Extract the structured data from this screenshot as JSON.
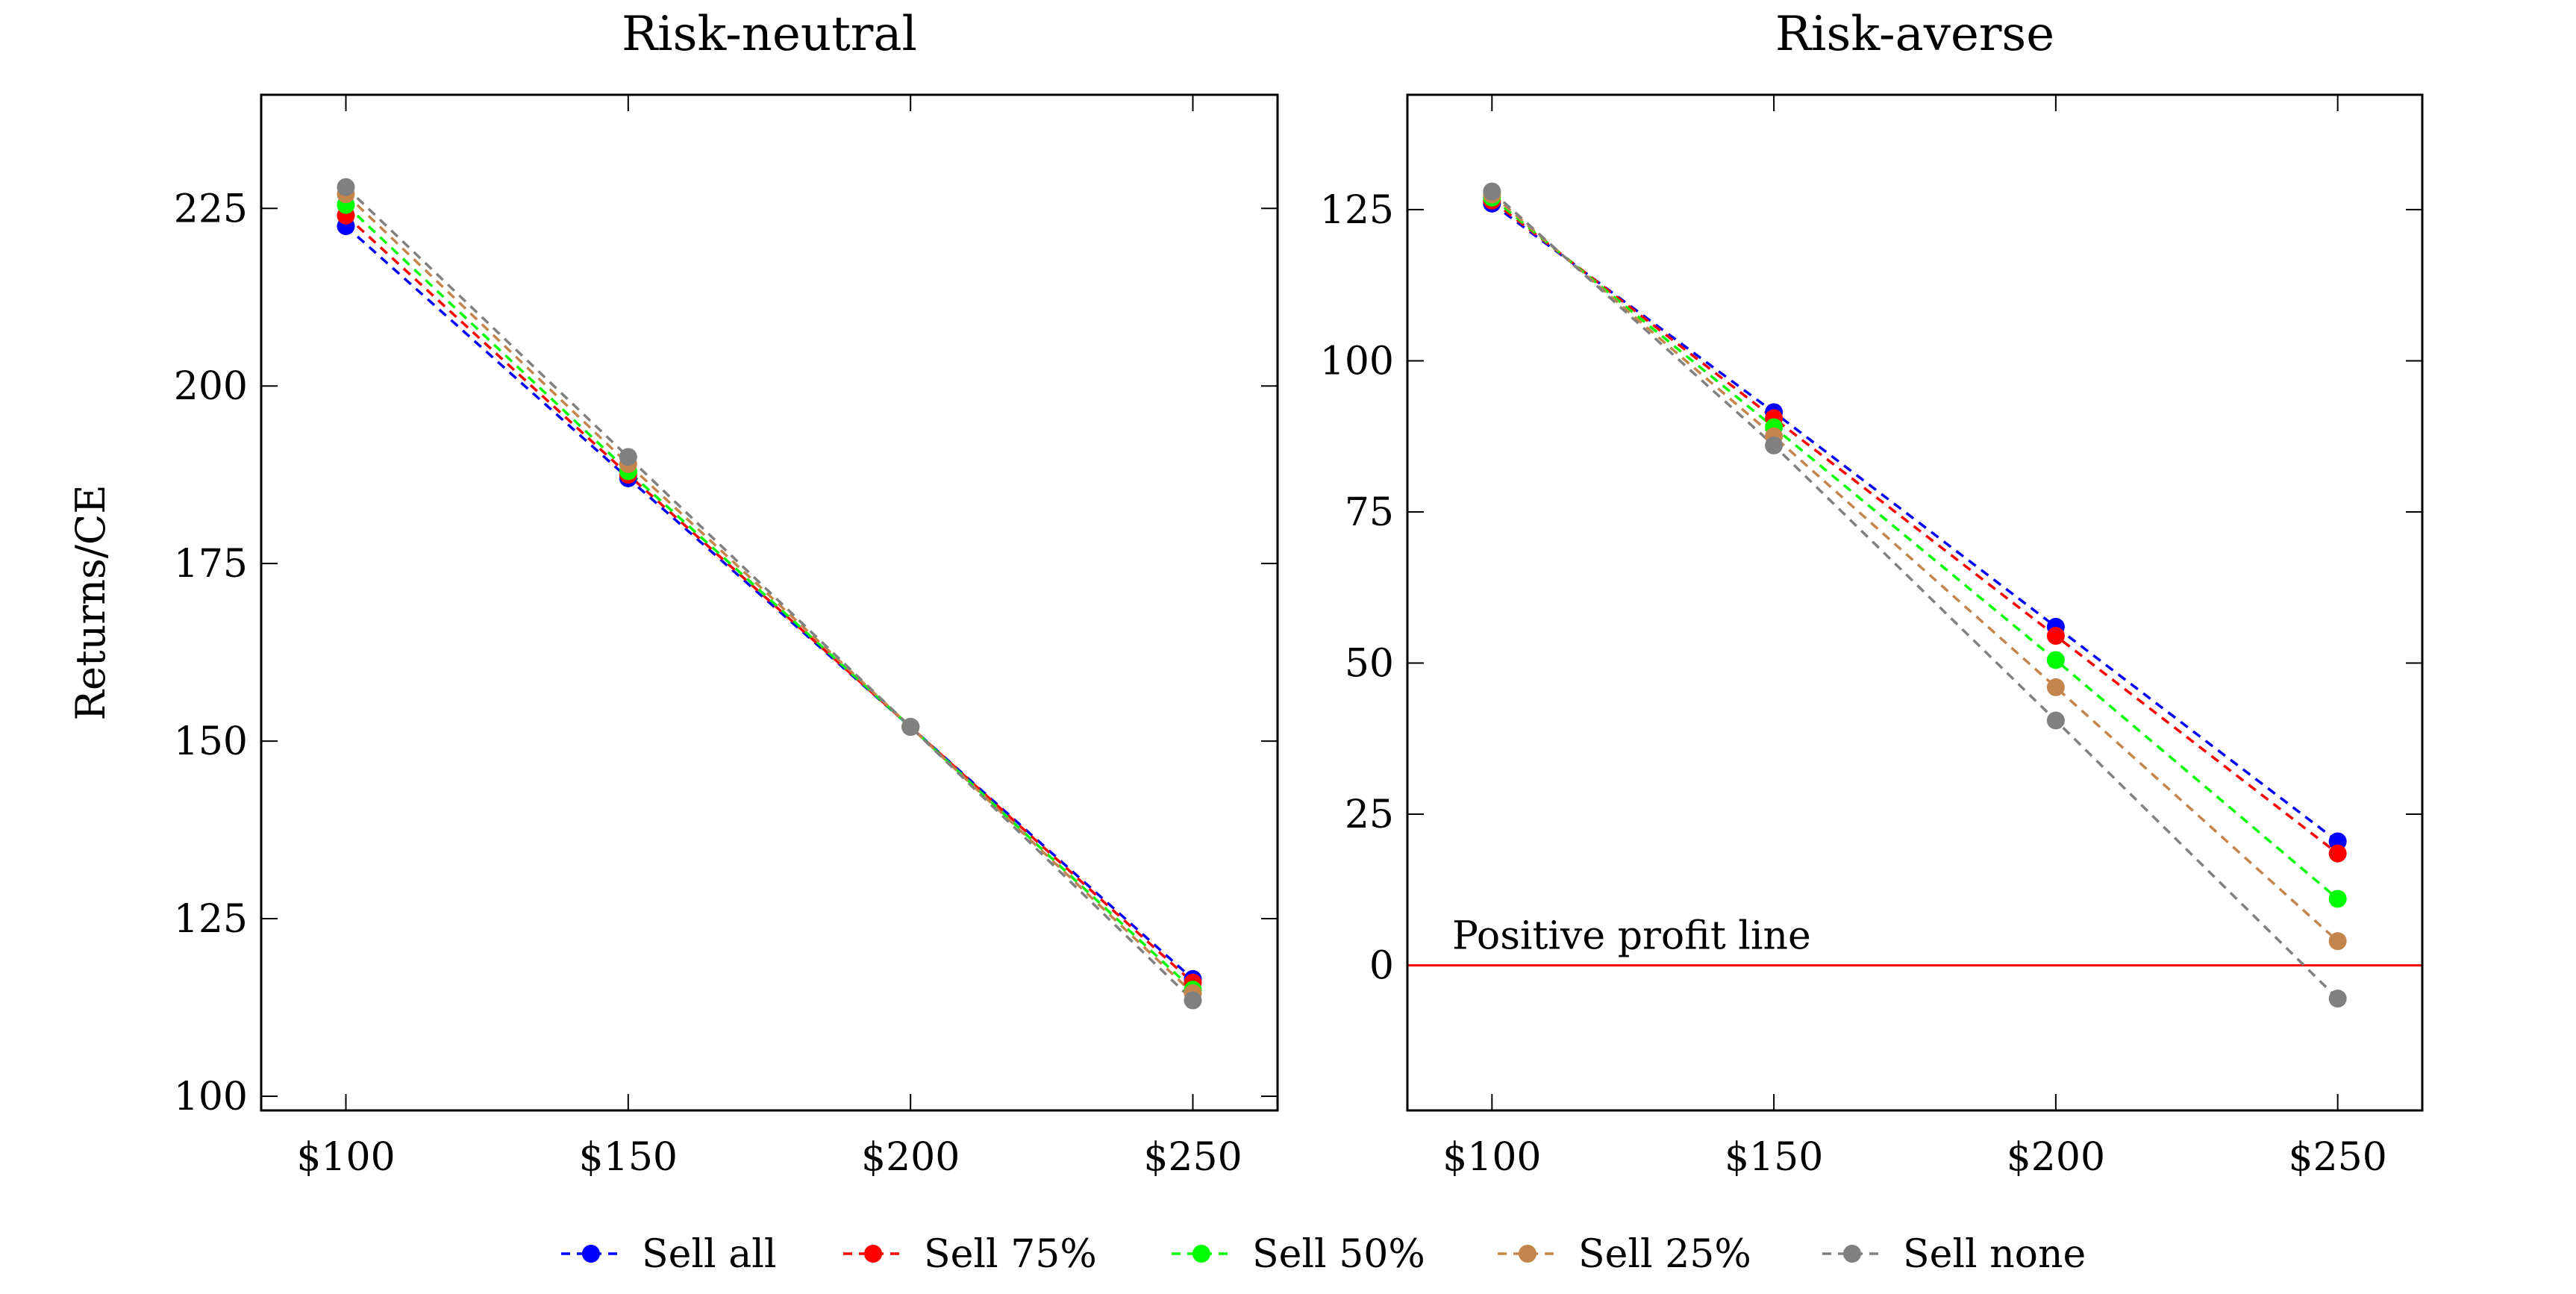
{
  "chart_data": [
    {
      "type": "line",
      "title": "Risk-neutral",
      "xlabel": "",
      "ylabel": "Returns/CE",
      "categories": [
        "$100",
        "$150",
        "$200",
        "$250"
      ],
      "x": [
        100,
        150,
        200,
        250
      ],
      "xlim": [
        85,
        265
      ],
      "ylim": [
        98,
        241
      ],
      "yticks": [
        100,
        125,
        150,
        175,
        200,
        225
      ],
      "grid": false,
      "series": [
        {
          "name": "Sell all",
          "color": "#0000ff",
          "values": [
            222.5,
            187.0,
            152.0,
            116.5
          ]
        },
        {
          "name": "Sell 75%",
          "color": "#ff0000",
          "values": [
            224.0,
            187.5,
            152.0,
            116.0
          ]
        },
        {
          "name": "Sell 50%",
          "color": "#00ff00",
          "values": [
            225.5,
            188.0,
            152.0,
            115.0
          ]
        },
        {
          "name": "Sell 25%",
          "color": "#c4854d",
          "values": [
            227.0,
            189.0,
            152.0,
            114.5
          ]
        },
        {
          "name": "Sell none",
          "color": "#808080",
          "values": [
            228.0,
            190.0,
            152.0,
            113.5
          ]
        }
      ]
    },
    {
      "type": "line",
      "title": "Risk-averse",
      "xlabel": "",
      "ylabel": "",
      "categories": [
        "$100",
        "$150",
        "$200",
        "$250"
      ],
      "x": [
        100,
        150,
        200,
        250
      ],
      "xlim": [
        85,
        265
      ],
      "ylim": [
        -24,
        144
      ],
      "yticks": [
        0,
        25,
        50,
        75,
        100,
        125
      ],
      "grid": false,
      "reference_line": {
        "y": 0,
        "label": "Positive profit line",
        "color": "#ff0000"
      },
      "series": [
        {
          "name": "Sell all",
          "color": "#0000ff",
          "values": [
            126.0,
            91.5,
            56.0,
            20.5
          ]
        },
        {
          "name": "Sell 75%",
          "color": "#ff0000",
          "values": [
            126.5,
            90.5,
            54.5,
            18.5
          ]
        },
        {
          "name": "Sell 50%",
          "color": "#00ff00",
          "values": [
            127.0,
            89.0,
            50.5,
            11.0
          ]
        },
        {
          "name": "Sell 25%",
          "color": "#c4854d",
          "values": [
            127.5,
            87.5,
            46.0,
            4.0
          ]
        },
        {
          "name": "Sell none",
          "color": "#808080",
          "values": [
            128.0,
            86.0,
            40.5,
            -5.5
          ]
        }
      ]
    }
  ],
  "legend": {
    "placement": "bottom",
    "entries": [
      "Sell all",
      "Sell 75%",
      "Sell 50%",
      "Sell 25%",
      "Sell none"
    ]
  }
}
